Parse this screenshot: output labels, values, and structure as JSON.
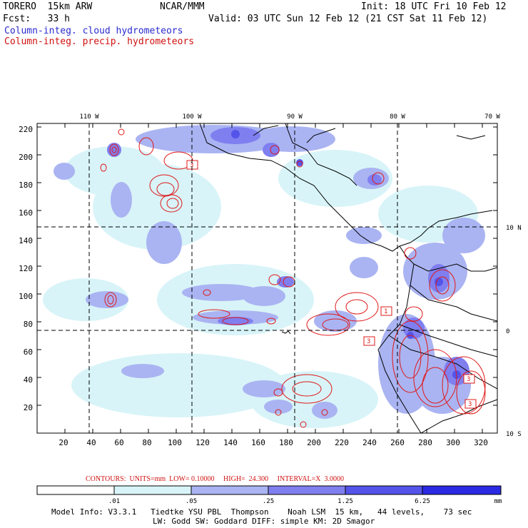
{
  "header": {
    "model": "TORERO  15km ARW",
    "org": "NCAR/MMM",
    "init": "Init: 18 UTC Fri 10 Feb 12",
    "fcst": "Fcst:   33 h",
    "valid": "Valid: 03 UTC Sun 12 Feb 12 (21 CST Sat 11 Feb 12)",
    "field1": "Column-integ. cloud hydrometeors",
    "field2": "Column-integ. precip. hydrometeors"
  },
  "map": {
    "lon_labels": [
      "110 W",
      "100 W",
      "90 W",
      "80 W",
      "70 W"
    ],
    "lat_labels": [
      "10 N",
      "0",
      "10 S"
    ],
    "y_ticks": [
      "220",
      "200",
      "180",
      "160",
      "140",
      "120",
      "100",
      "80",
      "60",
      "40",
      "20"
    ],
    "x_ticks": [
      "20",
      "40",
      "60",
      "80",
      "100",
      "120",
      "140",
      "160",
      "180",
      "200",
      "220",
      "240",
      "260",
      "280",
      "300",
      "320"
    ],
    "contour_labels": [
      "3",
      "1",
      "3",
      "3",
      "3"
    ]
  },
  "contours_line": "CONTOURS:  UNITS=mm  LOW= 0.10000     HIGH=  24.300     INTERVAL=X  3.0000",
  "colorbar": {
    "labels": [
      ".01",
      ".05",
      ".25",
      "1.25",
      "6.25"
    ],
    "unit": "mm",
    "colors": [
      "#ffffff",
      "#d8f4f8",
      "#aab4f2",
      "#7f7ff0",
      "#5454ea",
      "#2a2ae2"
    ]
  },
  "model_info": {
    "line1": "Model Info: V3.3.1   Tiedtke YSU PBL  Thompson    Noah LSM  15 km,   44 levels,    73 sec",
    "line2": "LW: Godd SW: Goddard DIFF: simple KM: 2D Smagor"
  }
}
